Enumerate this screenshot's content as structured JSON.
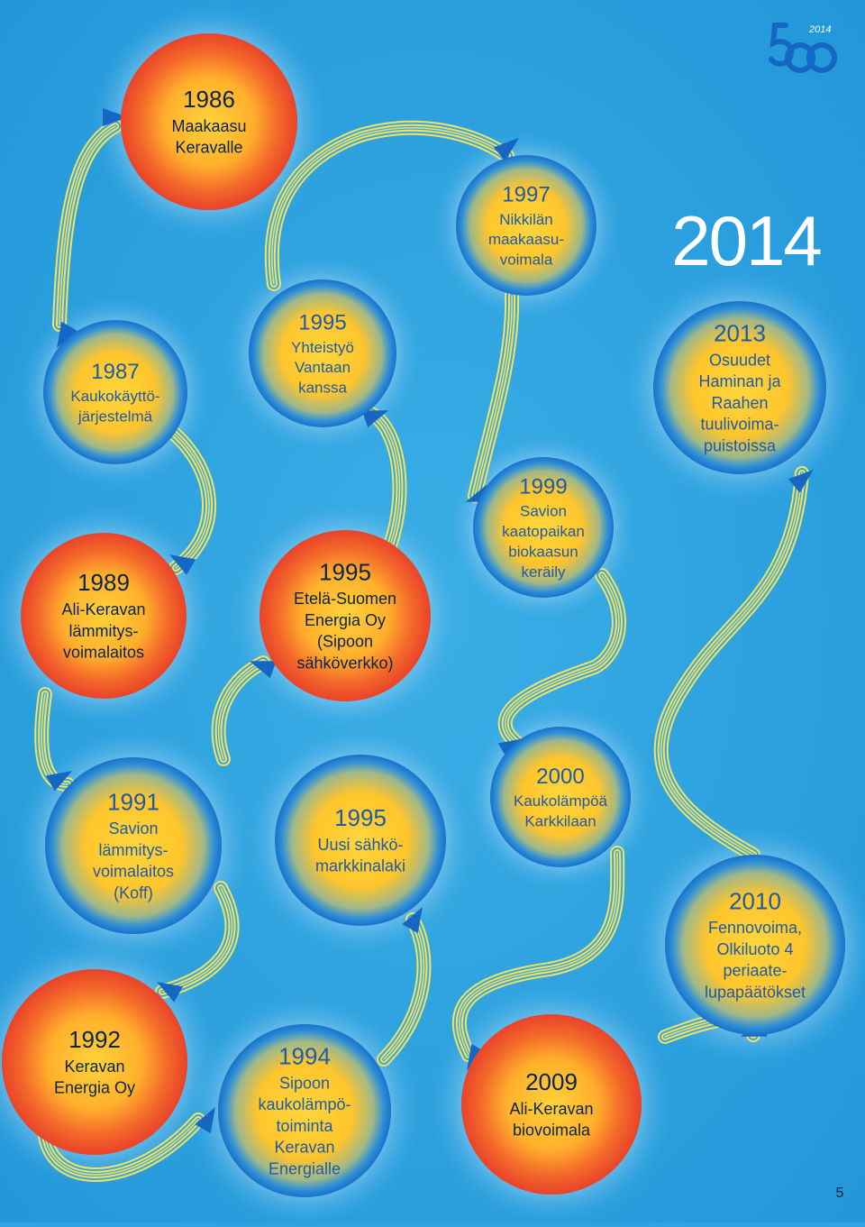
{
  "page_title": "2014",
  "page_number": "5",
  "logo": {
    "number": "50",
    "year": "2014"
  },
  "colors": {
    "background": "#2fa3e0",
    "blue_ring": "#1a7fd0",
    "blue_core": "#ffd23a",
    "orange_ring": "#ee4a2a",
    "orange_core": "#ffd23a",
    "path": "#f5e15a",
    "arrow": "#1666c4",
    "text_dark": "#0b2540",
    "text_blue": "#1d5aa8"
  },
  "milestones": [
    {
      "id": "1986",
      "year": "1986",
      "lines": [
        "Maakaasu",
        "Keravalle"
      ],
      "style": "orange"
    },
    {
      "id": "1987",
      "year": "1987",
      "lines": [
        "Kaukokäyttö-",
        "järjestelmä"
      ],
      "style": "blue"
    },
    {
      "id": "1989",
      "year": "1989",
      "lines": [
        "Ali-Keravan",
        "lämmitys-",
        "voimalaitos"
      ],
      "style": "orange"
    },
    {
      "id": "1991",
      "year": "1991",
      "lines": [
        "Savion",
        "lämmitys-",
        "voimalaitos",
        "(Koff)"
      ],
      "style": "blue"
    },
    {
      "id": "1992",
      "year": "1992",
      "lines": [
        "Keravan",
        "Energia Oy"
      ],
      "style": "orange"
    },
    {
      "id": "1994",
      "year": "1994",
      "lines": [
        "Sipoon",
        "kaukolämpö-",
        "toiminta",
        "Keravan",
        "Energialle"
      ],
      "style": "blue"
    },
    {
      "id": "1995c",
      "year": "1995",
      "lines": [
        "Uusi sähkö-",
        "markkinalaki"
      ],
      "style": "blue"
    },
    {
      "id": "1995b",
      "year": "1995",
      "lines": [
        "Etelä-Suomen",
        "Energia Oy",
        "(Sipoon",
        "sähköverkko)"
      ],
      "style": "orange"
    },
    {
      "id": "1995a",
      "year": "1995",
      "lines": [
        "Yhteistyö",
        "Vantaan",
        "kanssa"
      ],
      "style": "blue"
    },
    {
      "id": "1997",
      "year": "1997",
      "lines": [
        "Nikkilän",
        "maakaasu-",
        "voimala"
      ],
      "style": "blue"
    },
    {
      "id": "1999",
      "year": "1999",
      "lines": [
        "Savion",
        "kaatopaikan",
        "biokaasun",
        "keräily"
      ],
      "style": "blue"
    },
    {
      "id": "2000",
      "year": "2000",
      "lines": [
        "Kaukolämpöä",
        "Karkkilaan"
      ],
      "style": "blue"
    },
    {
      "id": "2009",
      "year": "2009",
      "lines": [
        "Ali-Keravan",
        "biovoimala"
      ],
      "style": "orange"
    },
    {
      "id": "2010",
      "year": "2010",
      "lines": [
        "Fennovoima,",
        "Olkiluoto 4",
        "periaate-",
        "lupapäätökset"
      ],
      "style": "blue"
    },
    {
      "id": "2013",
      "year": "2013",
      "lines": [
        "Osuudet",
        "Haminan ja",
        "Raahen",
        "tuulivoima-",
        "puistoissa"
      ],
      "style": "blue"
    }
  ]
}
